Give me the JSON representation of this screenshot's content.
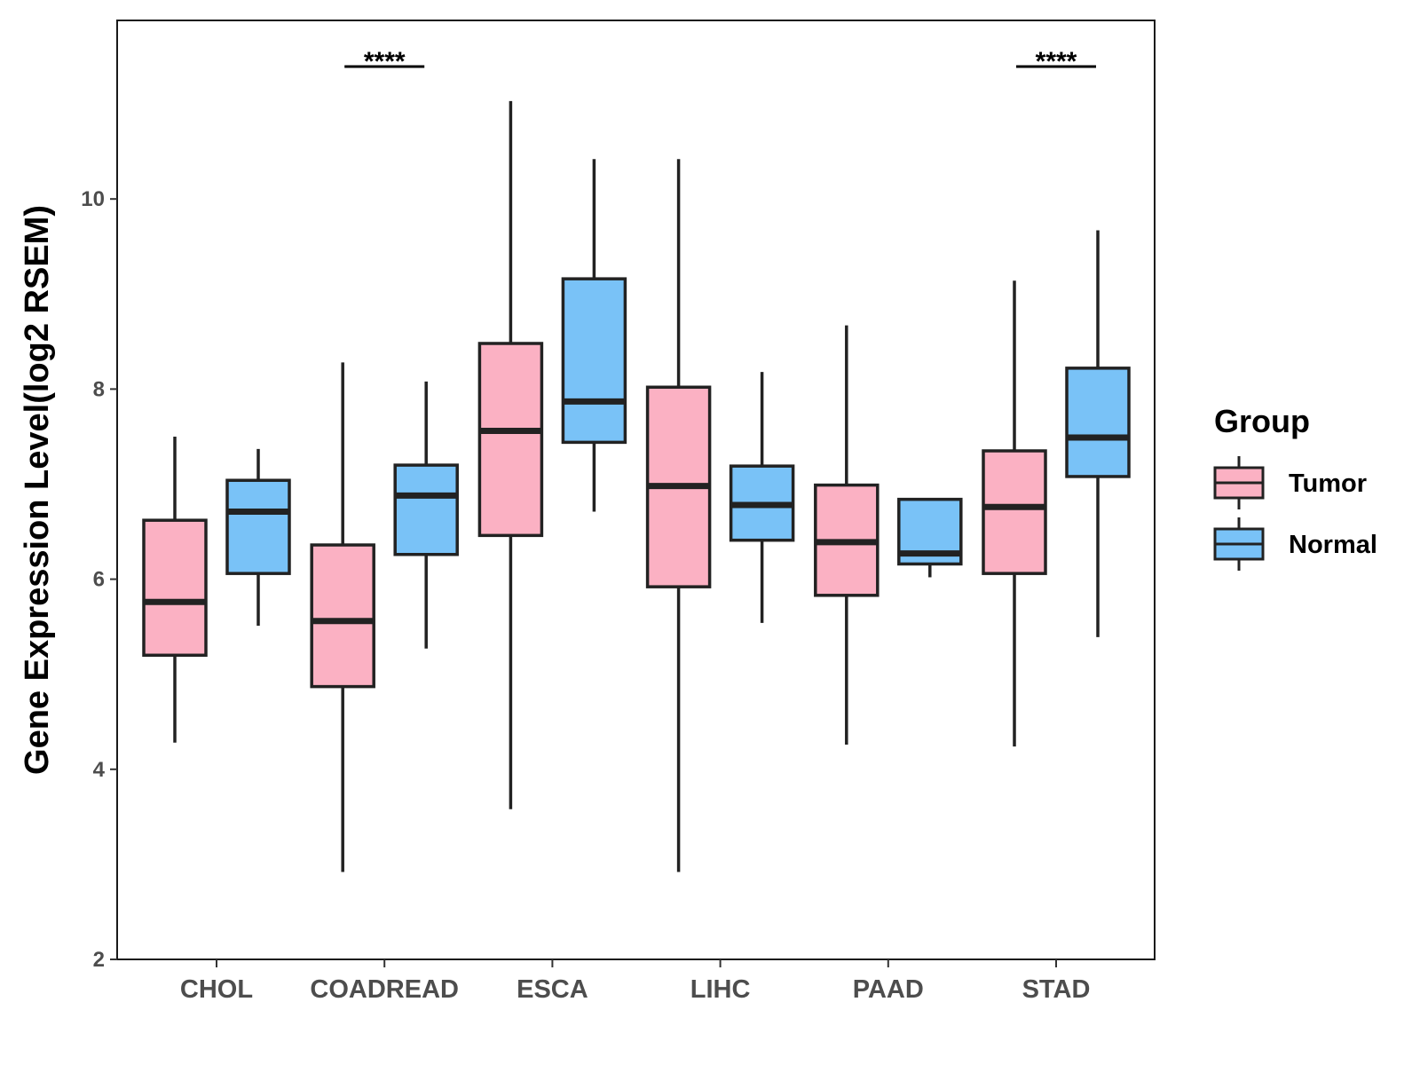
{
  "chart_data": {
    "type": "box",
    "title": "",
    "xlabel": "",
    "ylabel": "Gene Expression Level(log2 RSEM)",
    "ylim": [
      2,
      11.9
    ],
    "yticks": [
      2,
      4,
      6,
      8,
      10
    ],
    "yticks_text": [
      "2",
      "4",
      "6",
      "8",
      "10"
    ],
    "grid": false,
    "legend_position": "right",
    "categories": [
      "CHOL",
      "COADREAD",
      "ESCA",
      "LIHC",
      "PAAD",
      "STAD"
    ],
    "legend": {
      "title": "Group",
      "entries": [
        "Tumor",
        "Normal"
      ]
    },
    "series": [
      {
        "name": "Tumor",
        "color": "#fbb1c3",
        "boxes": [
          {
            "min": 4.28,
            "q1": 5.2,
            "median": 5.76,
            "q3": 6.62,
            "max": 7.5
          },
          {
            "min": 2.92,
            "q1": 4.87,
            "median": 5.56,
            "q3": 6.36,
            "max": 8.28
          },
          {
            "min": 3.58,
            "q1": 6.46,
            "median": 7.56,
            "q3": 8.48,
            "max": 11.03
          },
          {
            "min": 2.92,
            "q1": 5.92,
            "median": 6.98,
            "q3": 8.02,
            "max": 10.42
          },
          {
            "min": 4.26,
            "q1": 5.83,
            "median": 6.39,
            "q3": 6.99,
            "max": 8.67
          },
          {
            "min": 4.24,
            "q1": 6.06,
            "median": 6.76,
            "q3": 7.35,
            "max": 9.14
          }
        ]
      },
      {
        "name": "Normal",
        "color": "#79c2f7",
        "boxes": [
          {
            "min": 5.51,
            "q1": 6.06,
            "median": 6.71,
            "q3": 7.04,
            "max": 7.37
          },
          {
            "min": 5.27,
            "q1": 6.26,
            "median": 6.88,
            "q3": 7.2,
            "max": 8.08
          },
          {
            "min": 6.71,
            "q1": 7.44,
            "median": 7.87,
            "q3": 9.16,
            "max": 10.42
          },
          {
            "min": 5.54,
            "q1": 6.41,
            "median": 6.78,
            "q3": 7.19,
            "max": 8.18
          },
          {
            "min": 6.02,
            "q1": 6.16,
            "median": 6.27,
            "q3": 6.84,
            "max": 6.84
          },
          {
            "min": 5.39,
            "q1": 7.08,
            "median": 7.49,
            "q3": 8.22,
            "max": 9.67
          }
        ]
      }
    ],
    "annotations": [
      {
        "category": "COADREAD",
        "text": "****"
      },
      {
        "category": "STAD",
        "text": "****"
      }
    ]
  }
}
